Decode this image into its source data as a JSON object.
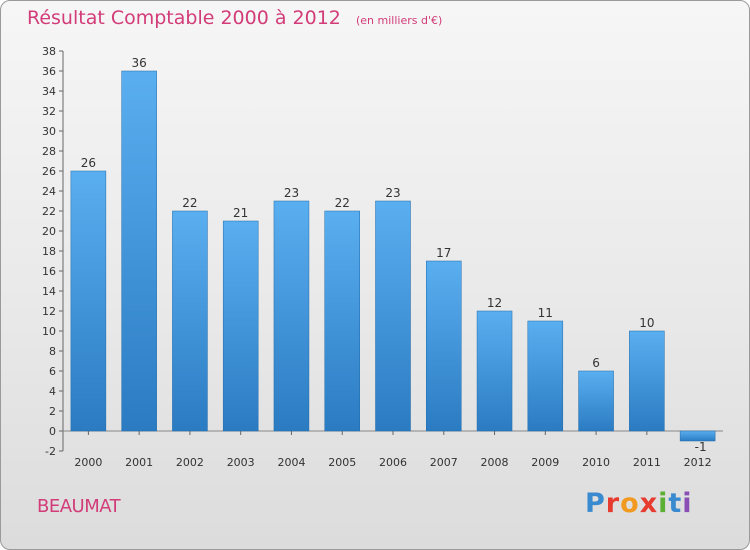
{
  "header": {
    "title": "Résultat Comptable 2000 à 2012",
    "subtitle": "(en milliers d'€)"
  },
  "footer": {
    "commune": "BEAUMAT",
    "logo_text": "Proxiti",
    "logo_letters": [
      "P",
      "r",
      "o",
      "x",
      "i",
      "t",
      "i"
    ],
    "logo_colors": [
      "#3a8ad0",
      "#e63b2e",
      "#f29a1f",
      "#e63b2e",
      "#5bb034",
      "#3a8ad0",
      "#8a4fb5"
    ]
  },
  "colors": {
    "bar": "#4a9fe0",
    "bar_dark": "#2a78c0",
    "text": "#d23c78",
    "axis": "#333333"
  },
  "chart_data": {
    "type": "bar",
    "categories": [
      "2000",
      "2001",
      "2002",
      "2003",
      "2004",
      "2005",
      "2006",
      "2007",
      "2008",
      "2009",
      "2010",
      "2011",
      "2012"
    ],
    "values": [
      26,
      36,
      22,
      21,
      23,
      22,
      23,
      17,
      12,
      11,
      6,
      10,
      -1
    ],
    "value_labels": [
      "26",
      "36",
      "22",
      "21",
      "23",
      "22",
      "23",
      "17",
      "12",
      "11",
      "6",
      "10",
      "-1"
    ],
    "y_ticks": [
      -2,
      0,
      2,
      4,
      6,
      8,
      10,
      12,
      14,
      16,
      18,
      20,
      22,
      24,
      26,
      28,
      30,
      32,
      34,
      36,
      38
    ],
    "ylim": [
      -2,
      38
    ],
    "title": "Résultat Comptable 2000 à 2012",
    "xlabel": "",
    "ylabel": "",
    "grid": false,
    "legend": "none"
  }
}
